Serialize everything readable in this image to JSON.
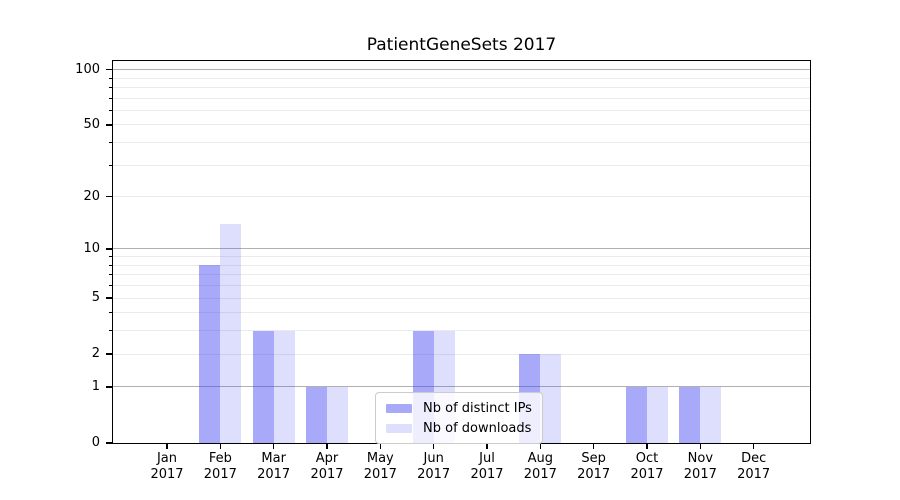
{
  "chart_data": {
    "type": "bar",
    "title": "PatientGeneSets 2017",
    "categories": [
      "Jan\n2017",
      "Feb\n2017",
      "Mar\n2017",
      "Apr\n2017",
      "May\n2017",
      "Jun\n2017",
      "Jul\n2017",
      "Aug\n2017",
      "Sep\n2017",
      "Oct\n2017",
      "Nov\n2017",
      "Dec\n2017"
    ],
    "series": [
      {
        "name": "Nb of distinct IPs",
        "values": [
          0,
          8,
          3,
          1,
          0,
          3,
          0,
          2,
          0,
          1,
          1,
          0
        ],
        "color": "rgba(60,60,243,0.44)",
        "approx_hex": "#a9a9f9"
      },
      {
        "name": "Nb of downloads",
        "values": [
          0,
          14,
          3,
          1,
          0,
          3,
          0,
          2,
          0,
          1,
          1,
          0
        ],
        "color": "rgba(60,60,243,0.17)",
        "approx_hex": "#ddddfd"
      }
    ],
    "xlabel": "",
    "ylabel": "",
    "y_axis": {
      "scale": "log1p",
      "labeled_ticks": [
        0,
        1,
        2,
        5,
        10,
        20,
        50,
        100
      ],
      "major_gridlines": [
        1,
        10,
        100
      ],
      "minor_gridlines": [
        2,
        3,
        4,
        5,
        6,
        7,
        8,
        9,
        20,
        30,
        40,
        50,
        60,
        70,
        80,
        90
      ],
      "ylim_max": 110
    },
    "legend": {
      "position": "lower center"
    },
    "grid": true,
    "colors": {
      "major_grid": "#b0b0b0",
      "minor_grid": "#ebebeb",
      "axis": "#000000",
      "legend_border": "#cccccc",
      "legend_background": "rgba(255,255,255,0.8)"
    }
  }
}
